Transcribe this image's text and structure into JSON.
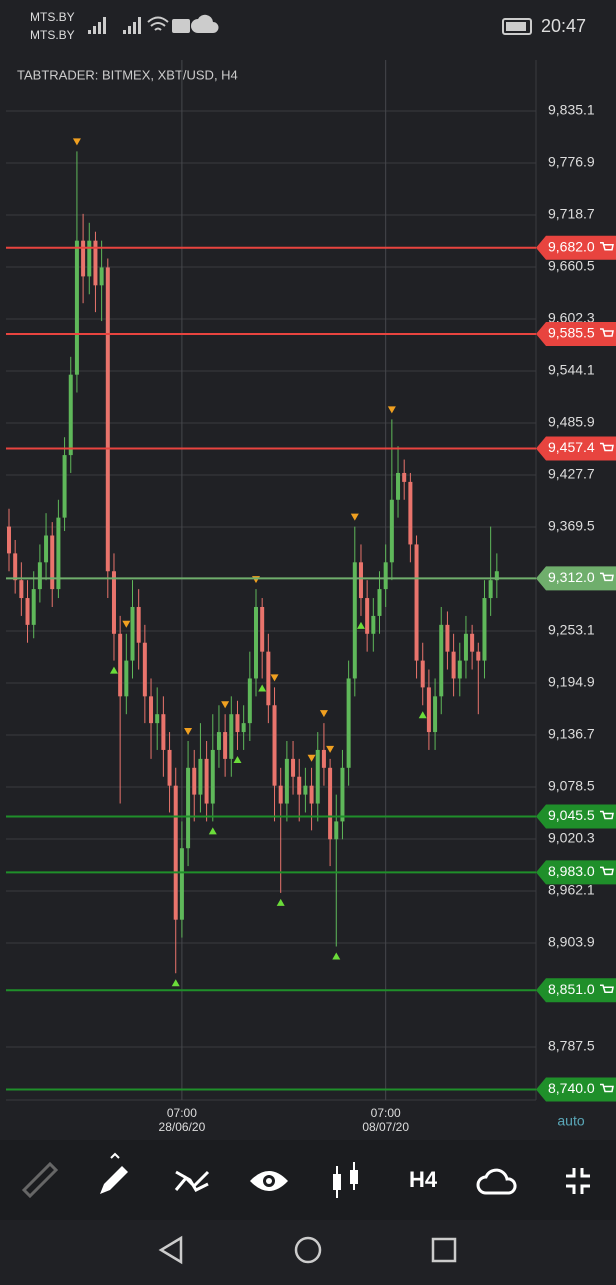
{
  "status_bar": {
    "carrier_1": "MTS.BY",
    "carrier_2": "MTS.BY",
    "clock": "20:47"
  },
  "toolbar": {
    "timeframe": "H4"
  },
  "chart_data": {
    "type": "candlestick",
    "title": "TABTRADER: BITMEX, XBT/USD, H4",
    "axis_mode": "auto",
    "up_color": "#5fb85a",
    "down_color": "#e9746c",
    "ylim": [
      8728.2,
      9892.2
    ],
    "yticks": [
      {
        "value": 9835.1,
        "label": "9,835.1"
      },
      {
        "value": 9776.9,
        "label": "9,776.9"
      },
      {
        "value": 9718.7,
        "label": "9,718.7"
      },
      {
        "value": 9660.5,
        "label": "9,660.5"
      },
      {
        "value": 9602.3,
        "label": "9,602.3"
      },
      {
        "value": 9544.1,
        "label": "9,544.1"
      },
      {
        "value": 9485.9,
        "label": "9,485.9"
      },
      {
        "value": 9427.7,
        "label": "9,427.7"
      },
      {
        "value": 9369.5,
        "label": "9,369.5"
      },
      {
        "value": 9253.1,
        "label": "9,253.1"
      },
      {
        "value": 9194.9,
        "label": "9,194.9"
      },
      {
        "value": 9136.7,
        "label": "9,136.7"
      },
      {
        "value": 9078.5,
        "label": "9,078.5"
      },
      {
        "value": 9020.3,
        "label": "9,020.3"
      },
      {
        "value": 8962.1,
        "label": "8,962.1"
      },
      {
        "value": 8903.9,
        "label": "8,903.9"
      },
      {
        "value": 8787.5,
        "label": "8,787.5"
      }
    ],
    "time_ticks": [
      {
        "candle": 28,
        "time": "07:00",
        "date": "28/06/20"
      },
      {
        "candle": 61,
        "time": "07:00",
        "date": "08/07/20"
      }
    ],
    "levels": [
      {
        "value": 9682.0,
        "label": "9,682.0",
        "color": "#e8443f"
      },
      {
        "value": 9585.5,
        "label": "9,585.5",
        "color": "#e8443f"
      },
      {
        "value": 9457.4,
        "label": "9,457.4",
        "color": "#e8443f"
      },
      {
        "value": 9312.0,
        "label": "9,312.0",
        "color": "#6fae6c"
      },
      {
        "value": 9045.5,
        "label": "9,045.5",
        "color": "#1f8f2a"
      },
      {
        "value": 8983.0,
        "label": "8,983.0",
        "color": "#1f8f2a"
      },
      {
        "value": 8851.0,
        "label": "8,851.0",
        "color": "#1f8f2a"
      },
      {
        "value": 8740.0,
        "label": "8,740.0",
        "color": "#1f8f2a"
      }
    ],
    "candles": [
      [
        9370,
        9390,
        9320,
        9340
      ],
      [
        9340,
        9355,
        9295,
        9310
      ],
      [
        9310,
        9330,
        9270,
        9290
      ],
      [
        9290,
        9310,
        9240,
        9260
      ],
      [
        9260,
        9320,
        9245,
        9300
      ],
      [
        9300,
        9350,
        9285,
        9330
      ],
      [
        9330,
        9385,
        9310,
        9360
      ],
      [
        9360,
        9375,
        9280,
        9300
      ],
      [
        9300,
        9400,
        9290,
        9380
      ],
      [
        9380,
        9470,
        9365,
        9450
      ],
      [
        9450,
        9560,
        9430,
        9540
      ],
      [
        9540,
        9790,
        9520,
        9690
      ],
      [
        9690,
        9720,
        9620,
        9650
      ],
      [
        9650,
        9710,
        9630,
        9690
      ],
      [
        9690,
        9700,
        9610,
        9640
      ],
      [
        9640,
        9690,
        9600,
        9660
      ],
      [
        9660,
        9670,
        9290,
        9320
      ],
      [
        9320,
        9340,
        9220,
        9250
      ],
      [
        9250,
        9270,
        9060,
        9180
      ],
      [
        9180,
        9250,
        9160,
        9220
      ],
      [
        9220,
        9310,
        9200,
        9280
      ],
      [
        9280,
        9300,
        9210,
        9240
      ],
      [
        9240,
        9260,
        9150,
        9180
      ],
      [
        9180,
        9200,
        9110,
        9150
      ],
      [
        9150,
        9190,
        9120,
        9160
      ],
      [
        9160,
        9180,
        9090,
        9120
      ],
      [
        9120,
        9140,
        9050,
        9080
      ],
      [
        9080,
        9100,
        8870,
        8930
      ],
      [
        8930,
        9040,
        8910,
        9010
      ],
      [
        9010,
        9130,
        8990,
        9100
      ],
      [
        9100,
        9120,
        9040,
        9070
      ],
      [
        9070,
        9150,
        9050,
        9110
      ],
      [
        9110,
        9130,
        9040,
        9060
      ],
      [
        9060,
        9160,
        9040,
        9120
      ],
      [
        9120,
        9170,
        9100,
        9140
      ],
      [
        9140,
        9160,
        9090,
        9110
      ],
      [
        9110,
        9180,
        9090,
        9160
      ],
      [
        9160,
        9175,
        9120,
        9140
      ],
      [
        9140,
        9170,
        9120,
        9150
      ],
      [
        9150,
        9230,
        9130,
        9200
      ],
      [
        9200,
        9300,
        9180,
        9280
      ],
      [
        9280,
        9290,
        9200,
        9230
      ],
      [
        9230,
        9250,
        9150,
        9170
      ],
      [
        9170,
        9190,
        9040,
        9080
      ],
      [
        9080,
        9100,
        8960,
        9060
      ],
      [
        9060,
        9130,
        9040,
        9110
      ],
      [
        9110,
        9130,
        9070,
        9090
      ],
      [
        9090,
        9110,
        9040,
        9070
      ],
      [
        9070,
        9100,
        9050,
        9080
      ],
      [
        9080,
        9100,
        9030,
        9060
      ],
      [
        9060,
        9140,
        9040,
        9120
      ],
      [
        9120,
        9150,
        9080,
        9100
      ],
      [
        9100,
        9110,
        8990,
        9020
      ],
      [
        9020,
        9070,
        8900,
        9040
      ],
      [
        9040,
        9120,
        9020,
        9100
      ],
      [
        9100,
        9220,
        9080,
        9200
      ],
      [
        9200,
        9370,
        9180,
        9330
      ],
      [
        9330,
        9350,
        9270,
        9290
      ],
      [
        9290,
        9310,
        9230,
        9250
      ],
      [
        9250,
        9290,
        9230,
        9270
      ],
      [
        9270,
        9320,
        9250,
        9300
      ],
      [
        9300,
        9350,
        9280,
        9330
      ],
      [
        9330,
        9490,
        9310,
        9400
      ],
      [
        9400,
        9460,
        9380,
        9430
      ],
      [
        9430,
        9445,
        9400,
        9420
      ],
      [
        9420,
        9430,
        9330,
        9350
      ],
      [
        9350,
        9360,
        9200,
        9220
      ],
      [
        9220,
        9240,
        9170,
        9190
      ],
      [
        9190,
        9210,
        9120,
        9140
      ],
      [
        9140,
        9200,
        9120,
        9180
      ],
      [
        9180,
        9280,
        9160,
        9260
      ],
      [
        9260,
        9275,
        9210,
        9230
      ],
      [
        9230,
        9250,
        9180,
        9200
      ],
      [
        9200,
        9240,
        9180,
        9220
      ],
      [
        9220,
        9270,
        9200,
        9250
      ],
      [
        9250,
        9260,
        9210,
        9230
      ],
      [
        9230,
        9240,
        9160,
        9220
      ],
      [
        9220,
        9310,
        9200,
        9290
      ],
      [
        9290,
        9370,
        9270,
        9310
      ],
      [
        9310,
        9340,
        9290,
        9320
      ]
    ],
    "signals": {
      "buy": [
        17,
        27,
        33,
        37,
        41,
        44,
        53,
        57,
        67
      ],
      "sell": [
        11,
        19,
        29,
        35,
        40,
        43,
        49,
        51,
        52,
        56,
        62
      ]
    }
  }
}
